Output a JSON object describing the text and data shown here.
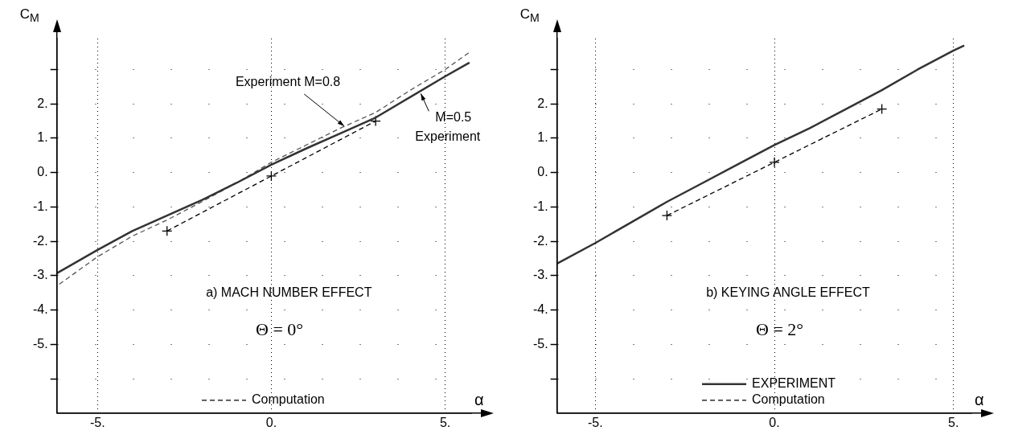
{
  "chart_data": [
    {
      "type": "line",
      "xlabel": "α",
      "ylabel": "C$_{M}$",
      "xlim": [
        -6.17,
        5.75
      ],
      "ylim": [
        -7,
        3.9
      ],
      "xticks": [
        {
          "value": -5,
          "label": "-5."
        },
        {
          "value": 0,
          "label": "0."
        },
        {
          "value": 5,
          "label": "5."
        }
      ],
      "yticks": [
        {
          "value": 3,
          "label": null
        },
        {
          "value": 2,
          "label": "2."
        },
        {
          "value": 1,
          "label": "1."
        },
        {
          "value": 0,
          "label": "0."
        },
        {
          "value": -1,
          "label": "-1."
        },
        {
          "value": -2,
          "label": "-2."
        },
        {
          "value": -3,
          "label": "-3."
        },
        {
          "value": -4,
          "label": "-4."
        },
        {
          "value": -5,
          "label": "-5."
        },
        {
          "value": -6,
          "label": null
        }
      ],
      "grid": true,
      "legend": "bottom",
      "marker": "none",
      "annotations": [
        "a) MACH NUMBER EFFECT",
        "Θ = 0°",
        {
          "text": "Experiment M=0.8",
          "x": 2.1,
          "y": 1.35
        },
        {
          "text": "M=0.5 Experiment",
          "x": 4.3,
          "y": 2.3
        }
      ],
      "series": [
        {
          "color": "#333333",
          "line_style": "solid",
          "x": [
            -6.17,
            -5,
            -4,
            -3,
            -2,
            -1,
            0,
            1,
            2,
            3,
            4,
            5,
            5.7
          ],
          "values": [
            -2.93,
            -2.25,
            -1.7,
            -1.25,
            -0.8,
            -0.3,
            0.23,
            0.7,
            1.15,
            1.6,
            2.2,
            2.8,
            3.2
          ]
        },
        {
          "color": "#555555",
          "line_style": "dashed",
          "x": [
            -6.1,
            -5,
            -4,
            -3,
            -2,
            -1,
            0,
            1,
            2,
            3,
            4,
            5,
            5.7
          ],
          "values": [
            -3.25,
            -2.45,
            -1.85,
            -1.38,
            -0.85,
            -0.3,
            0.3,
            0.8,
            1.3,
            1.75,
            2.4,
            3.0,
            3.5
          ]
        },
        {
          "name": "Computation",
          "color": "#000000",
          "line_style": "dashed",
          "marker": "cross",
          "x": [
            -3,
            0,
            3
          ],
          "values": [
            -1.7,
            -0.1,
            1.5
          ]
        }
      ]
    },
    {
      "type": "line",
      "xlabel": "α",
      "ylabel": "C$_{M}$",
      "xlim": [
        -6.07,
        5.5
      ],
      "ylim": [
        -7,
        3.9
      ],
      "xticks": [
        {
          "value": -5,
          "label": "-5."
        },
        {
          "value": 0,
          "label": "0."
        },
        {
          "value": 5,
          "label": "5."
        }
      ],
      "yticks": [
        {
          "value": 3,
          "label": null
        },
        {
          "value": 2,
          "label": "2."
        },
        {
          "value": 1,
          "label": "1."
        },
        {
          "value": 0,
          "label": "0."
        },
        {
          "value": -1,
          "label": "-1."
        },
        {
          "value": -2,
          "label": "-2."
        },
        {
          "value": -3,
          "label": "-3."
        },
        {
          "value": -4,
          "label": "-4."
        },
        {
          "value": -5,
          "label": "-5."
        },
        {
          "value": -6,
          "label": null
        }
      ],
      "grid": true,
      "legend": "bottom",
      "marker": "none",
      "annotations": [
        "b) KEYING ANGLE EFFECT",
        "Θ = 2°"
      ],
      "series": [
        {
          "name": "EXPERIMENT",
          "color": "#333333",
          "line_style": "solid",
          "x": [
            -6.07,
            -5,
            -4,
            -3,
            -2,
            -1,
            0,
            1,
            2,
            3,
            4,
            5,
            5.3
          ],
          "values": [
            -2.65,
            -2.05,
            -1.45,
            -0.85,
            -0.3,
            0.25,
            0.8,
            1.3,
            1.85,
            2.4,
            3.0,
            3.55,
            3.7
          ]
        },
        {
          "name": "Computation",
          "color": "#000000",
          "line_style": "dashed",
          "marker": "cross",
          "x": [
            -3,
            0,
            3
          ],
          "values": [
            -1.25,
            0.3,
            1.85
          ]
        }
      ]
    }
  ]
}
